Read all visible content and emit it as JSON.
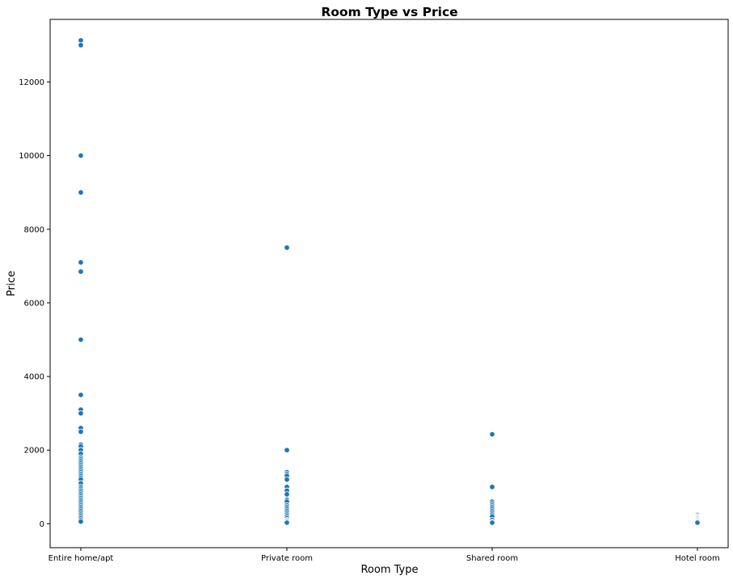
{
  "chart_data": {
    "type": "scatter",
    "title": "Room Type vs Price",
    "xlabel": "Room Type",
    "ylabel": "Price",
    "categories": [
      "Entire home/apt",
      "Private room",
      "Shared room",
      "Hotel room"
    ],
    "ylim": [
      -650,
      13700
    ],
    "yticks": [
      0,
      2000,
      4000,
      6000,
      8000,
      10000,
      12000
    ],
    "grid": false,
    "legend": "none",
    "marker_color": "#1f77b4",
    "points": [
      {
        "category": "Entire home/apt",
        "prices": [
          13130,
          13000,
          10000,
          9000,
          7100,
          6850,
          5000,
          3500,
          3100,
          3000,
          2600,
          2500,
          2150,
          2100,
          2000,
          1900,
          1800,
          1750,
          1700,
          1650,
          1600,
          1550,
          1500,
          1450,
          1400,
          1350,
          1300,
          1250,
          1200,
          1100,
          1000,
          950,
          900,
          850,
          800,
          750,
          700,
          650,
          600,
          550,
          500,
          450,
          400,
          350,
          300,
          250,
          200,
          150,
          100,
          60
        ]
      },
      {
        "category": "Private room",
        "prices": [
          7500,
          2000,
          1400,
          1350,
          1300,
          1200,
          1000,
          900,
          800,
          650,
          600,
          500,
          450,
          400,
          350,
          300,
          250,
          200,
          150,
          100,
          80,
          50,
          30
        ]
      },
      {
        "category": "Shared room",
        "prices": [
          2430,
          1000,
          600,
          550,
          500,
          450,
          400,
          350,
          300,
          250,
          200,
          100,
          50,
          30
        ]
      },
      {
        "category": "Hotel room",
        "prices": [
          250,
          230,
          200,
          180,
          160,
          140,
          120,
          100,
          80,
          60,
          40,
          30
        ]
      }
    ]
  }
}
